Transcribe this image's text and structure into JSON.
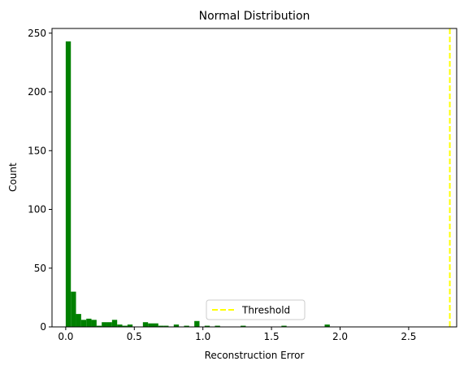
{
  "chart_data": {
    "type": "bar",
    "title": "Normal Distribution",
    "xlabel": "Reconstruction Error",
    "ylabel": "Count",
    "xlim": [
      -0.1,
      2.85
    ],
    "ylim": [
      0,
      254
    ],
    "x_ticks": [
      0.0,
      0.5,
      1.0,
      1.5,
      2.0,
      2.5
    ],
    "x_tick_labels": [
      "0.0",
      "0.5",
      "1.0",
      "1.5",
      "2.0",
      "2.5"
    ],
    "y_ticks": [
      0,
      50,
      100,
      150,
      200,
      250
    ],
    "y_tick_labels": [
      "0",
      "50",
      "100",
      "150",
      "200",
      "250"
    ],
    "bin_width": 0.0375,
    "bins": [
      {
        "x": 0.0,
        "count": 243
      },
      {
        "x": 0.0375,
        "count": 30
      },
      {
        "x": 0.075,
        "count": 11
      },
      {
        "x": 0.1125,
        "count": 6
      },
      {
        "x": 0.15,
        "count": 7
      },
      {
        "x": 0.1875,
        "count": 6
      },
      {
        "x": 0.225,
        "count": 1
      },
      {
        "x": 0.2625,
        "count": 4
      },
      {
        "x": 0.3,
        "count": 4
      },
      {
        "x": 0.3375,
        "count": 6
      },
      {
        "x": 0.375,
        "count": 2
      },
      {
        "x": 0.4125,
        "count": 1
      },
      {
        "x": 0.45,
        "count": 2
      },
      {
        "x": 0.5625,
        "count": 4
      },
      {
        "x": 0.6,
        "count": 3
      },
      {
        "x": 0.6375,
        "count": 3
      },
      {
        "x": 0.675,
        "count": 1
      },
      {
        "x": 0.7125,
        "count": 1
      },
      {
        "x": 0.7875,
        "count": 2
      },
      {
        "x": 0.8625,
        "count": 1
      },
      {
        "x": 0.9375,
        "count": 5
      },
      {
        "x": 1.0125,
        "count": 1
      },
      {
        "x": 1.0875,
        "count": 1
      },
      {
        "x": 1.275,
        "count": 1
      },
      {
        "x": 1.5725,
        "count": 1
      },
      {
        "x": 1.8875,
        "count": 2
      }
    ],
    "threshold": {
      "x": 2.8,
      "label": "Threshold",
      "color": "#ffff00"
    },
    "bar_color": "#008000",
    "legend_position": "lower center",
    "grid": false
  }
}
